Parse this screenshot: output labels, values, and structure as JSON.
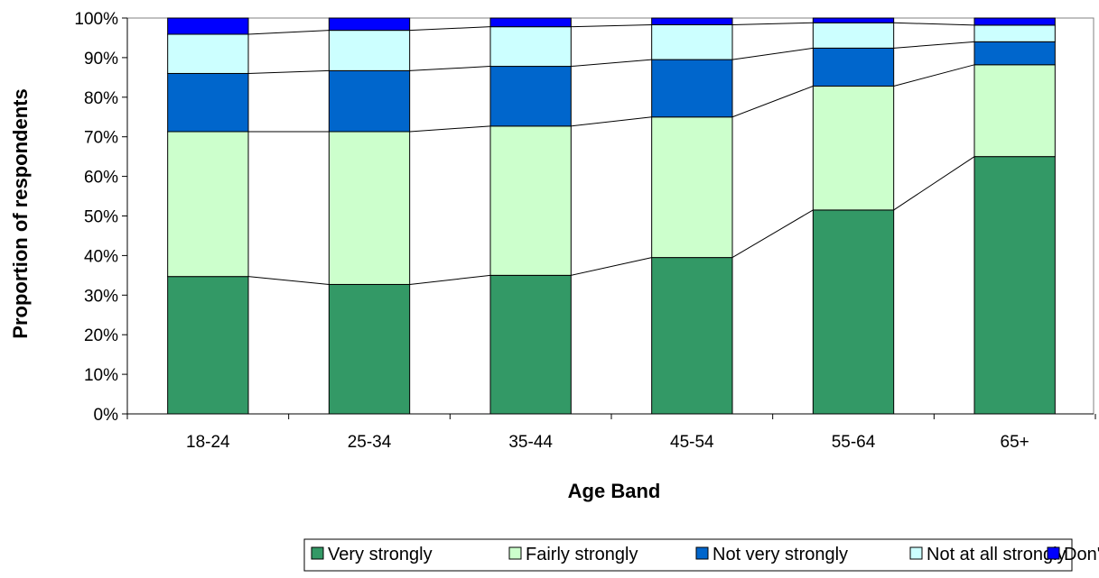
{
  "chart_data": {
    "type": "bar",
    "stacked": true,
    "percent_stacked": true,
    "xlabel": "Age Band",
    "ylabel": "Proportion of respondents",
    "ylim": [
      0,
      100
    ],
    "y_ticks": [
      "0%",
      "10%",
      "20%",
      "30%",
      "40%",
      "50%",
      "60%",
      "70%",
      "80%",
      "90%",
      "100%"
    ],
    "grid": false,
    "legend_position": "bottom",
    "series_connector_lines": true,
    "categories": [
      "18-24",
      "25-34",
      "35-44",
      "45-54",
      "55-64",
      "65+"
    ],
    "series": [
      {
        "name": "Very strongly",
        "color": "#339966",
        "values": [
          34.7,
          32.7,
          35.0,
          39.5,
          51.5,
          65.0
        ]
      },
      {
        "name": "Fairly strongly",
        "color": "#CCFFCC",
        "values": [
          36.6,
          38.6,
          37.7,
          35.5,
          31.3,
          23.2
        ]
      },
      {
        "name": "Not very strongly",
        "color": "#0066CC",
        "values": [
          14.7,
          15.4,
          15.1,
          14.5,
          9.6,
          5.8
        ]
      },
      {
        "name": "Not at all strongly",
        "color": "#CCFFFF",
        "values": [
          9.9,
          10.2,
          10.0,
          8.8,
          6.4,
          4.2
        ]
      },
      {
        "name": "Don't know",
        "color": "#0000FF",
        "values": [
          4.1,
          3.1,
          2.2,
          1.7,
          1.2,
          1.8
        ]
      }
    ]
  }
}
